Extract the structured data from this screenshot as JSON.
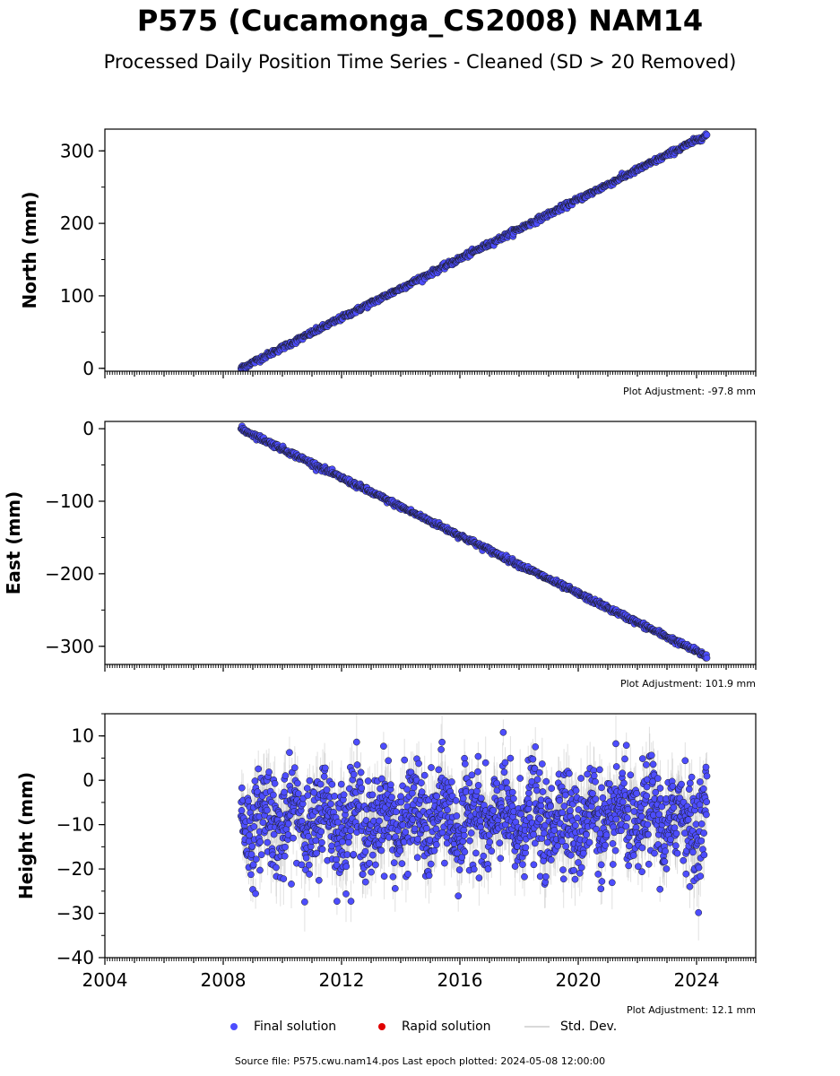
{
  "title": "P575 (Cucamonga_CS2008) NAM14",
  "subtitle": "Processed Daily Position Time Series - Cleaned (SD > 20 Removed)",
  "legend": {
    "final": "Final solution",
    "rapid": "Rapid solution",
    "std": "Std. Dev."
  },
  "source": "Source file: P575.cwu.nam14.pos  Last epoch plotted: 2024-05-08 12:00:00",
  "colors": {
    "final": "#4d4dff",
    "rapid": "#e00000",
    "std": "#bdbdbd",
    "outline": "#1a1a1a"
  },
  "chart_data": [
    {
      "type": "scatter",
      "ylabel": "North (mm)",
      "adjustment": "Plot Adjustment: -97.8 mm",
      "xlim": [
        2004.0,
        2026.0
      ],
      "ylim": [
        -4,
        330
      ],
      "yticks": [
        0,
        100,
        200,
        300
      ],
      "ytick_labels": [
        "0",
        "100",
        "200",
        "300"
      ],
      "data_start": 2008.6,
      "data_end": 2024.35,
      "trend": {
        "start": 0,
        "end": 322
      },
      "noise_mm": 1.8
    },
    {
      "type": "scatter",
      "ylabel": "East (mm)",
      "adjustment": "Plot Adjustment: 101.9 mm",
      "xlim": [
        2004.0,
        2026.0
      ],
      "ylim": [
        -325,
        10
      ],
      "yticks": [
        0,
        -100,
        -200,
        -300
      ],
      "ytick_labels": [
        "0",
        "−100",
        "−200",
        "−300"
      ],
      "data_start": 2008.6,
      "data_end": 2024.35,
      "trend": {
        "start": 0,
        "end": -314
      },
      "noise_mm": 1.8
    },
    {
      "type": "scatter",
      "ylabel": "Height (mm)",
      "adjustment": "Plot Adjustment: 12.1 mm",
      "xlim": [
        2004.0,
        2026.0
      ],
      "ylim": [
        -40,
        15
      ],
      "yticks": [
        10,
        0,
        -10,
        -20,
        -30,
        -40
      ],
      "ytick_labels": [
        "10",
        "0",
        "−10",
        "−20",
        "−30",
        "−40"
      ],
      "xticks": [
        2004,
        2008,
        2012,
        2016,
        2020,
        2024
      ],
      "data_start": 2008.6,
      "data_end": 2024.35,
      "trend": {
        "start": -9,
        "end": -9
      },
      "noise_mm": 5.5,
      "std_dev_mm": 4.5
    }
  ]
}
